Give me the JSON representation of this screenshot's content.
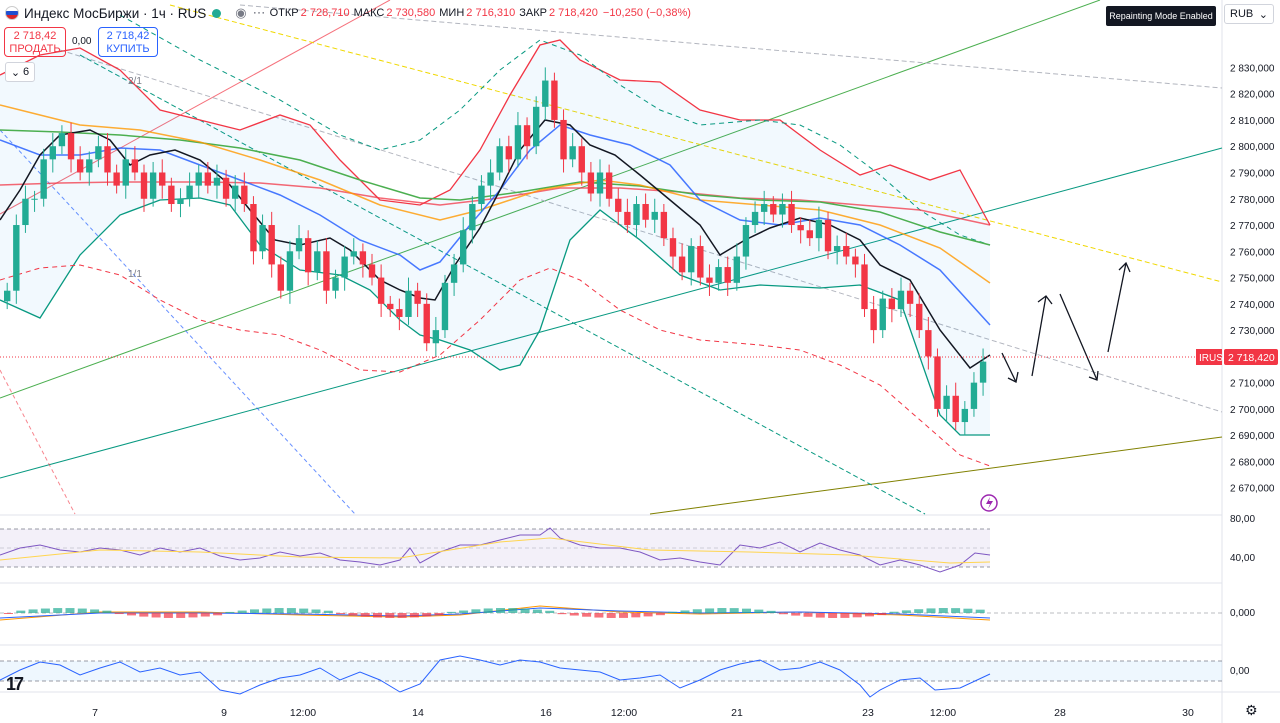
{
  "header": {
    "title": "Индекс МосБиржи · 1ч · RUS",
    "ohlc": [
      {
        "key": "ОТКР",
        "value": "2 728,710"
      },
      {
        "key": "МАКС",
        "value": "2 730,580"
      },
      {
        "key": "МИН",
        "value": "2 716,310"
      },
      {
        "key": "ЗАКР",
        "value": "2 718,420"
      }
    ],
    "change": "−10,250 (−0,38%)"
  },
  "trade": {
    "sell_price": "2 718,42",
    "sell_label": "ПРОДАТЬ",
    "spread": "0,00",
    "buy_price": "2 718,42",
    "buy_label": "КУПИТЬ"
  },
  "indicator_count": "6",
  "badge": "Repainting Mode Enabled",
  "currency": "RUB",
  "colors": {
    "up": "#22ab94",
    "down": "#f23645",
    "accent": "#2962ff"
  },
  "chart_data": {
    "type": "candlestick",
    "symbol_label": "IRUS",
    "last_price": "2 718,420",
    "ylim": [
      2660,
      2845
    ],
    "yticks": [
      "2 830,000",
      "2 820,000",
      "2 810,000",
      "2 800,000",
      "2 790,000",
      "2 780,000",
      "2 770,000",
      "2 760,000",
      "2 750,000",
      "2 740,000",
      "2 730,000",
      "2 720,000",
      "2 710,000",
      "2 700,000",
      "2 690,000",
      "2 680,000",
      "2 670,000"
    ],
    "xticks": [
      "7",
      "9",
      "12:00",
      "14",
      "16",
      "12:00",
      "21",
      "23",
      "12:00",
      "28",
      "30"
    ],
    "fib_labels": [
      "2/1",
      "1/1"
    ],
    "close": [
      2745,
      2770,
      2780,
      2780,
      2795,
      2800,
      2805,
      2795,
      2790,
      2795,
      2800,
      2790,
      2785,
      2795,
      2790,
      2780,
      2790,
      2785,
      2778,
      2780,
      2785,
      2790,
      2785,
      2788,
      2780,
      2785,
      2778,
      2760,
      2770,
      2755,
      2745,
      2760,
      2765,
      2752,
      2760,
      2745,
      2750,
      2758,
      2760,
      2755,
      2750,
      2740,
      2738,
      2735,
      2745,
      2740,
      2725,
      2730,
      2748,
      2755,
      2768,
      2778,
      2785,
      2790,
      2800,
      2795,
      2808,
      2800,
      2815,
      2825,
      2810,
      2795,
      2800,
      2790,
      2782,
      2790,
      2780,
      2775,
      2770,
      2778,
      2772,
      2775,
      2765,
      2758,
      2752,
      2762,
      2750,
      2748,
      2754,
      2748,
      2758,
      2770,
      2775,
      2778,
      2774,
      2778,
      2770,
      2768,
      2765,
      2772,
      2760,
      2762,
      2758,
      2755,
      2738,
      2730,
      2742,
      2738,
      2745,
      2740,
      2730,
      2720,
      2700,
      2705,
      2695,
      2700,
      2710,
      2718
    ],
    "indicators": {
      "rsi": {
        "ticks": [
          "80,00",
          "40,00"
        ]
      },
      "macd": {
        "ticks": [
          "0,000"
        ]
      },
      "osc": {
        "ticks": [
          "0,00"
        ]
      }
    }
  }
}
